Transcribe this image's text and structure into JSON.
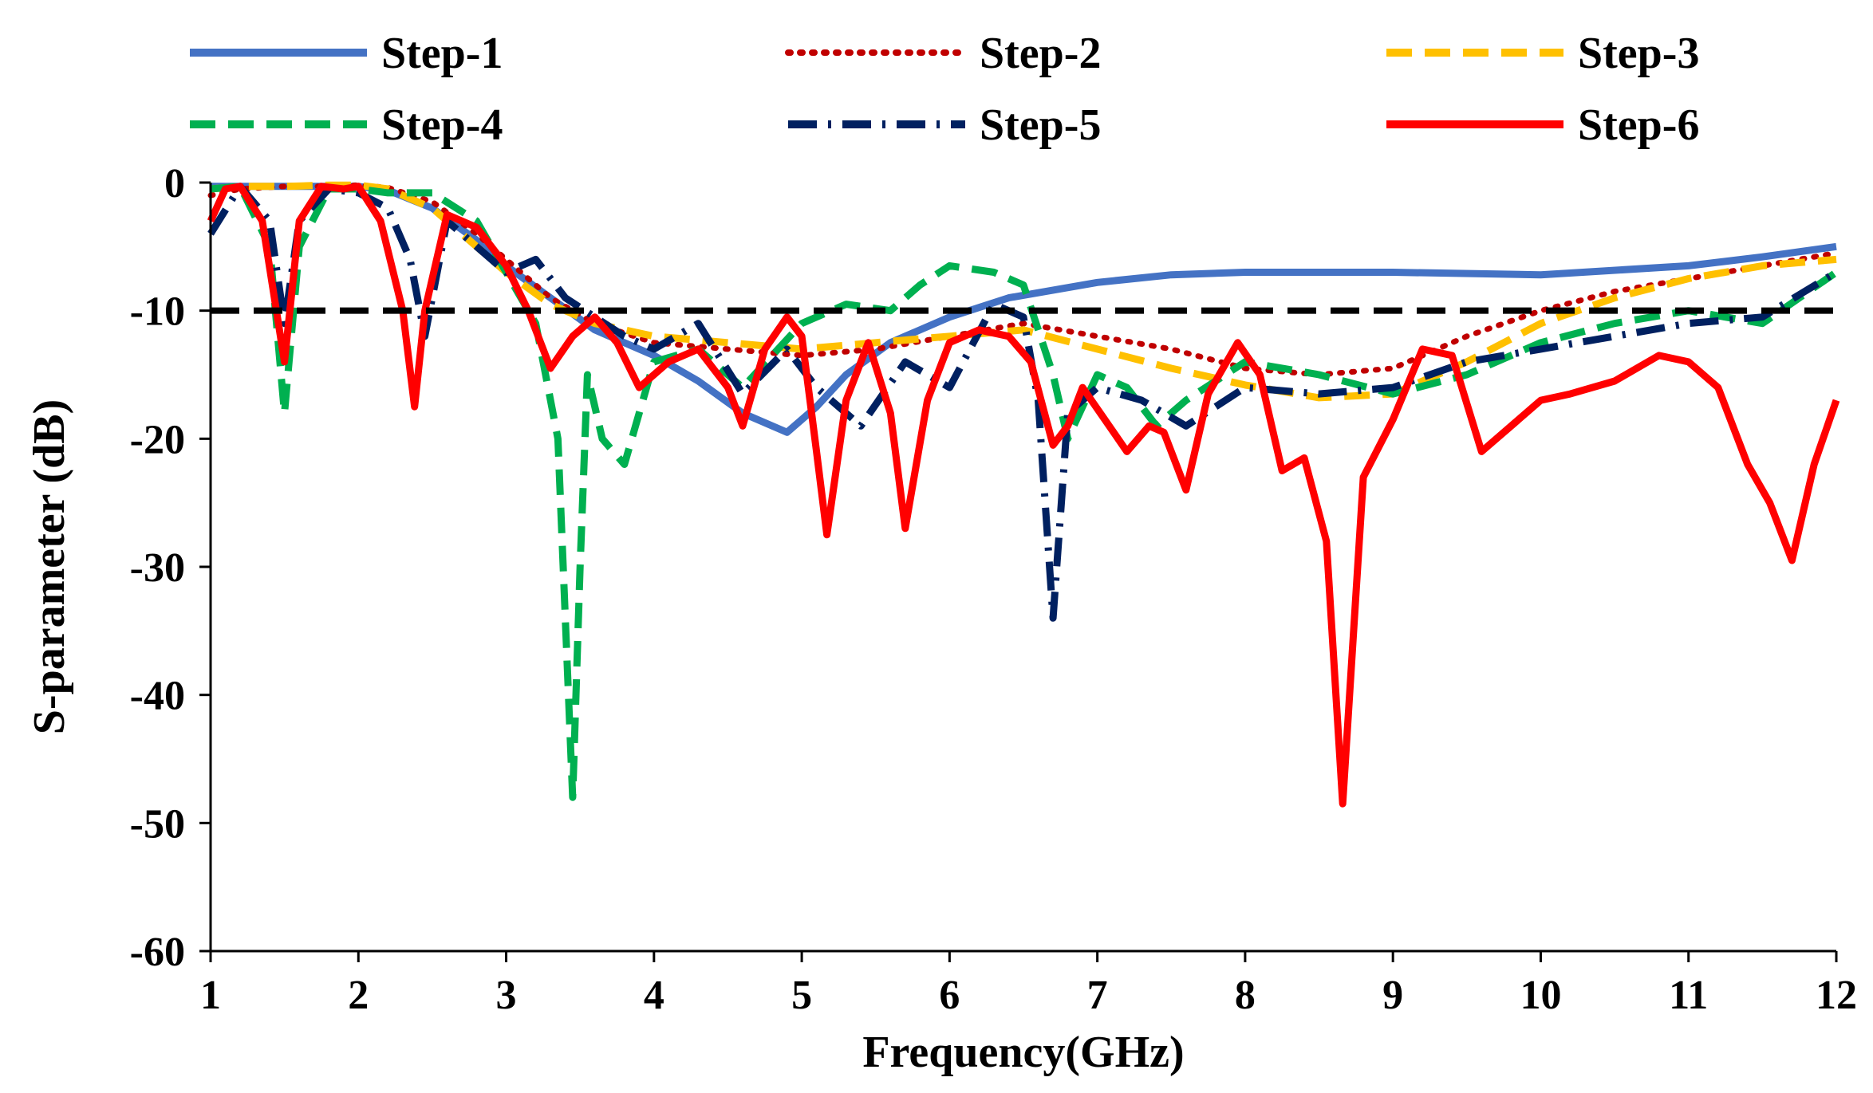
{
  "chart_data": {
    "type": "line",
    "title": "",
    "xlabel": "Frequency(GHz)",
    "ylabel": "S-parameter (dB)",
    "xlim": [
      1,
      12
    ],
    "ylim": [
      -60,
      0
    ],
    "xticks": [
      1,
      2,
      3,
      4,
      5,
      6,
      7,
      8,
      9,
      10,
      11,
      12
    ],
    "yticks": [
      0,
      -10,
      -20,
      -30,
      -40,
      -50,
      -60
    ],
    "xtick_labels": [
      "1",
      "2",
      "3",
      "4",
      "5",
      "6",
      "7",
      "8",
      "9",
      "10",
      "11",
      "12"
    ],
    "ytick_labels": [
      "0",
      "-10",
      "-20",
      "-30",
      "-40",
      "-50",
      "-60"
    ],
    "legend_position": "top",
    "reference_line": {
      "y": -10,
      "color": "#000000",
      "style": "dashed"
    },
    "series": [
      {
        "name": "Step-1",
        "color": "#4472C4",
        "style": "solid",
        "x": [
          1,
          1.5,
          2,
          2.2,
          2.5,
          2.8,
          3,
          3.3,
          3.6,
          4,
          4.3,
          4.6,
          4.9,
          5.1,
          5.3,
          5.6,
          6,
          6.4,
          7,
          7.5,
          8,
          9,
          10,
          11,
          11.5,
          12
        ],
        "y": [
          -0.3,
          -0.3,
          -0.3,
          -0.6,
          -2,
          -4.5,
          -6.5,
          -9,
          -11.5,
          -13.5,
          -15.5,
          -18,
          -19.5,
          -17.5,
          -15,
          -12.5,
          -10.5,
          -9,
          -7.8,
          -7.2,
          -7,
          -7,
          -7.2,
          -6.5,
          -5.8,
          -5
        ]
      },
      {
        "name": "Step-2",
        "color": "#C00000",
        "style": "dotted",
        "x": [
          1,
          1.2,
          1.5,
          1.8,
          2,
          2.2,
          2.5,
          2.8,
          3,
          3.3,
          3.6,
          4,
          4.5,
          5,
          5.5,
          6,
          6.5,
          7,
          7.5,
          8,
          8.5,
          9,
          9.5,
          10,
          10.5,
          11,
          11.5,
          12
        ],
        "y": [
          -1,
          -0.5,
          -0.3,
          -0.3,
          -0.2,
          -0.4,
          -1.5,
          -4,
          -6,
          -9,
          -11,
          -12.5,
          -13,
          -13.5,
          -13,
          -12,
          -11,
          -12,
          -13,
          -14.5,
          -15,
          -14.5,
          -12,
          -10,
          -8.5,
          -7.5,
          -6.5,
          -5.5
        ]
      },
      {
        "name": "Step-3",
        "color": "#FFC000",
        "style": "dashed",
        "x": [
          1,
          1.2,
          1.5,
          1.8,
          2,
          2.2,
          2.5,
          2.8,
          3,
          3.3,
          3.6,
          4,
          4.5,
          5,
          5.5,
          6,
          6.5,
          7,
          7.5,
          8,
          8.5,
          9,
          9.5,
          10,
          10.5,
          11,
          11.5,
          12
        ],
        "y": [
          -0.5,
          -0.3,
          -0.3,
          -0.2,
          -0.2,
          -0.5,
          -2,
          -5,
          -7,
          -9.5,
          -11,
          -12,
          -12.5,
          -13,
          -12.5,
          -12,
          -11.5,
          -13,
          -14.5,
          -15.8,
          -16.8,
          -16.5,
          -14,
          -11,
          -9,
          -7.5,
          -6.5,
          -6
        ]
      },
      {
        "name": "Step-4",
        "color": "#00B050",
        "style": "dashed",
        "x": [
          1,
          1.2,
          1.4,
          1.5,
          1.6,
          1.8,
          2,
          2.2,
          2.5,
          2.8,
          3,
          3.2,
          3.35,
          3.45,
          3.5,
          3.55,
          3.65,
          3.8,
          4,
          4.3,
          4.6,
          5,
          5.3,
          5.6,
          5.8,
          6,
          6.3,
          6.5,
          6.7,
          6.8,
          7,
          7.2,
          7.4,
          7.6,
          8,
          8.5,
          9,
          9.5,
          10,
          10.5,
          11,
          11.5,
          12
        ],
        "y": [
          -0.5,
          -0.3,
          -5,
          -18,
          -5,
          -0.5,
          -0.5,
          -0.8,
          -0.8,
          -3,
          -7,
          -11,
          -20,
          -48,
          -30,
          -15,
          -20,
          -22,
          -14,
          -13,
          -16,
          -11,
          -9.5,
          -10,
          -8,
          -6.5,
          -7,
          -8,
          -15,
          -20,
          -15,
          -16,
          -19,
          -17,
          -14,
          -15,
          -16.5,
          -15,
          -12.5,
          -11,
          -10,
          -11,
          -7
        ]
      },
      {
        "name": "Step-5",
        "color": "#002060",
        "style": "dashdot",
        "x": [
          1,
          1.2,
          1.4,
          1.5,
          1.6,
          1.8,
          2,
          2.2,
          2.35,
          2.45,
          2.6,
          2.8,
          3,
          3.2,
          3.4,
          3.6,
          3.8,
          4,
          4.3,
          4.6,
          4.9,
          5.1,
          5.4,
          5.7,
          6,
          6.3,
          6.5,
          6.6,
          6.7,
          6.8,
          7,
          7.3,
          7.6,
          8,
          8.5,
          9,
          9.5,
          10,
          10.5,
          11,
          11.5,
          12
        ],
        "y": [
          -4,
          -0.3,
          -3,
          -11,
          -3,
          -0.5,
          -0.8,
          -2,
          -6,
          -12,
          -3,
          -5,
          -7,
          -6,
          -9,
          -10.5,
          -12,
          -13,
          -11,
          -16.5,
          -13,
          -16,
          -19,
          -14,
          -16,
          -9.5,
          -10.5,
          -17,
          -34,
          -18,
          -16,
          -17,
          -19,
          -16,
          -16.5,
          -16,
          -14,
          -13,
          -12,
          -11,
          -10.5,
          -7
        ]
      },
      {
        "name": "Step-6",
        "color": "#FF0000",
        "style": "solid",
        "x": [
          1,
          1.1,
          1.2,
          1.35,
          1.5,
          1.6,
          1.75,
          1.9,
          2,
          2.15,
          2.3,
          2.38,
          2.45,
          2.6,
          2.8,
          3,
          3.15,
          3.3,
          3.45,
          3.6,
          3.75,
          3.9,
          4.1,
          4.3,
          4.5,
          4.6,
          4.75,
          4.9,
          5,
          5.1,
          5.17,
          5.3,
          5.45,
          5.6,
          5.7,
          5.85,
          6,
          6.2,
          6.4,
          6.55,
          6.7,
          6.8,
          6.9,
          7.05,
          7.2,
          7.35,
          7.45,
          7.6,
          7.75,
          7.95,
          8.1,
          8.25,
          8.4,
          8.55,
          8.66,
          8.8,
          9,
          9.2,
          9.4,
          9.6,
          9.8,
          10,
          10.2,
          10.5,
          10.8,
          11,
          11.2,
          11.4,
          11.55,
          11.7,
          11.85,
          12
        ],
        "y": [
          -3,
          -0.5,
          -0.3,
          -3,
          -14,
          -3,
          -0.3,
          -0.5,
          -0.3,
          -3,
          -10,
          -17.5,
          -10,
          -2.5,
          -3.5,
          -6.5,
          -10,
          -14.5,
          -12,
          -10.5,
          -12.5,
          -16,
          -14,
          -13,
          -16,
          -19,
          -13,
          -10.5,
          -12,
          -21,
          -27.5,
          -17,
          -12.5,
          -18,
          -27,
          -17,
          -12.5,
          -11.5,
          -12,
          -14,
          -20.5,
          -19,
          -16,
          -18.5,
          -21,
          -19,
          -19.5,
          -24,
          -16.5,
          -12.5,
          -15,
          -22.5,
          -21.5,
          -28,
          -48.5,
          -23,
          -18.5,
          -13,
          -13.5,
          -21,
          -19,
          -17,
          -16.5,
          -15.5,
          -13.5,
          -14,
          -16,
          -22,
          -25,
          -29.5,
          -22,
          -17
        ]
      }
    ]
  }
}
